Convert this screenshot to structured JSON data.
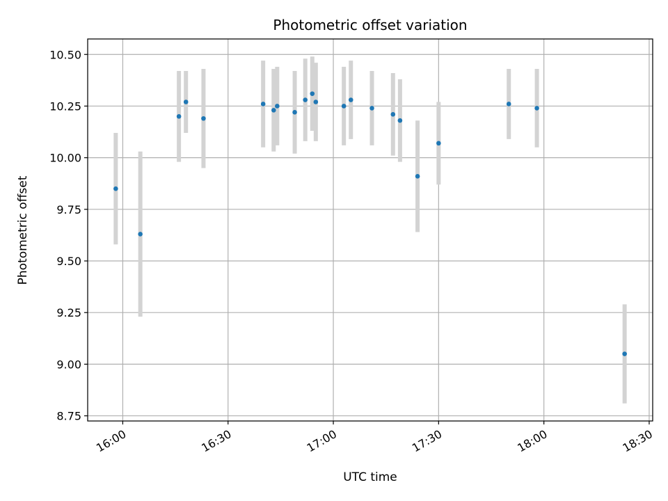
{
  "chart_data": {
    "type": "scatter",
    "title": "Photometric offset variation",
    "xlabel": "UTC time",
    "ylabel": "Photometric offset",
    "x_axis_kind": "time",
    "xlim": [
      "15:50",
      "18:31"
    ],
    "ylim": [
      8.725,
      10.575
    ],
    "x_ticks": [
      "16:00",
      "16:30",
      "17:00",
      "17:30",
      "18:00",
      "18:30"
    ],
    "y_ticks": [
      8.75,
      9.0,
      9.25,
      9.5,
      9.75,
      10.0,
      10.25,
      10.5
    ],
    "y_tick_labels": [
      "8.75",
      "9.00",
      "9.25",
      "9.50",
      "9.75",
      "10.00",
      "10.25",
      "10.50"
    ],
    "grid": true,
    "colors": {
      "point": "#1f77b4",
      "errorbar": "#d3d3d3",
      "grid": "#b0b0b0",
      "axes": "#000000"
    },
    "points": [
      {
        "time": "15:58",
        "y": 9.85,
        "err": 0.27
      },
      {
        "time": "16:05",
        "y": 9.63,
        "err": 0.4
      },
      {
        "time": "16:16",
        "y": 10.2,
        "err": 0.22
      },
      {
        "time": "16:18",
        "y": 10.27,
        "err": 0.15
      },
      {
        "time": "16:23",
        "y": 10.19,
        "err": 0.24
      },
      {
        "time": "16:40",
        "y": 10.26,
        "err": 0.21
      },
      {
        "time": "16:43",
        "y": 10.23,
        "err": 0.2
      },
      {
        "time": "16:44",
        "y": 10.25,
        "err": 0.19
      },
      {
        "time": "16:49",
        "y": 10.22,
        "err": 0.2
      },
      {
        "time": "16:52",
        "y": 10.28,
        "err": 0.2
      },
      {
        "time": "16:54",
        "y": 10.31,
        "err": 0.18
      },
      {
        "time": "16:55",
        "y": 10.27,
        "err": 0.19
      },
      {
        "time": "17:03",
        "y": 10.25,
        "err": 0.19
      },
      {
        "time": "17:05",
        "y": 10.28,
        "err": 0.19
      },
      {
        "time": "17:11",
        "y": 10.24,
        "err": 0.18
      },
      {
        "time": "17:17",
        "y": 10.21,
        "err": 0.2
      },
      {
        "time": "17:19",
        "y": 10.18,
        "err": 0.2
      },
      {
        "time": "17:24",
        "y": 9.91,
        "err": 0.27
      },
      {
        "time": "17:30",
        "y": 10.07,
        "err": 0.2
      },
      {
        "time": "17:50",
        "y": 10.26,
        "err": 0.17
      },
      {
        "time": "17:58",
        "y": 10.24,
        "err": 0.19
      },
      {
        "time": "18:23",
        "y": 9.05,
        "err": 0.24
      }
    ]
  }
}
